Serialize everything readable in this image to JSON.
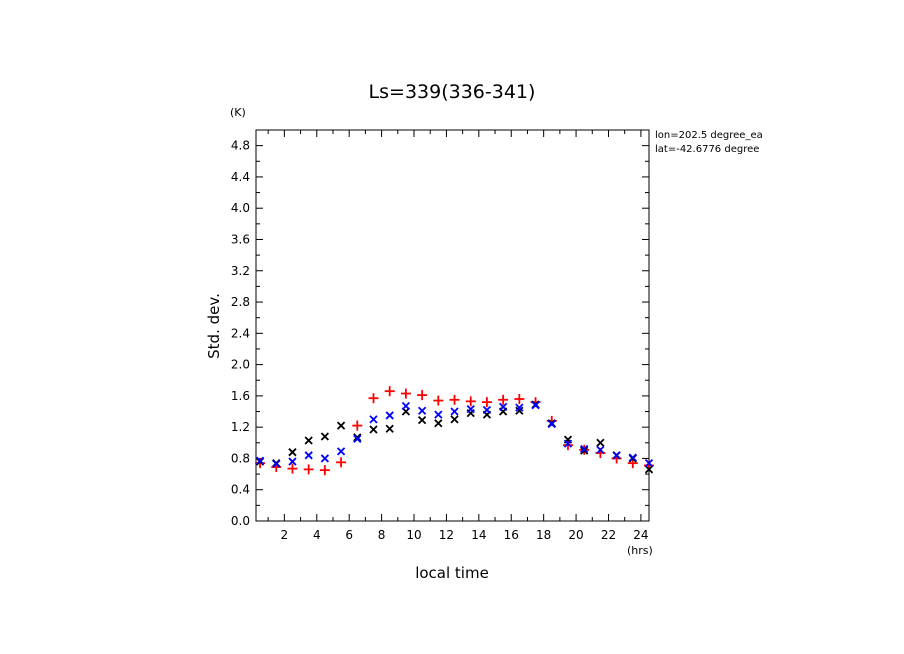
{
  "chart_data": {
    "type": "scatter",
    "title": "Ls=339(336-341)",
    "xlabel": "local time",
    "ylabel": "Std. dev.",
    "x_unit": "(hrs)",
    "y_unit": "(K)",
    "annotations": [
      "lon=202.5 degree_ea",
      "lat=-42.6776 degree"
    ],
    "xlim": [
      0.25,
      24.5
    ],
    "ylim": [
      0,
      5.0
    ],
    "xticks": [
      2,
      4,
      6,
      8,
      10,
      12,
      14,
      16,
      18,
      20,
      22,
      24
    ],
    "yticks": [
      0.0,
      0.4,
      0.8,
      1.2,
      1.6,
      2.0,
      2.4,
      2.8,
      3.2,
      3.6,
      4.0,
      4.4,
      4.8
    ],
    "x": [
      0.5,
      1.5,
      2.5,
      3.5,
      4.5,
      5.5,
      6.5,
      7.5,
      8.5,
      9.5,
      10.5,
      11.5,
      12.5,
      13.5,
      14.5,
      15.5,
      16.5,
      17.5,
      18.5,
      19.5,
      20.5,
      21.5,
      22.5,
      23.5,
      24.5
    ],
    "series": [
      {
        "color": "#ff0000",
        "marker": "plus",
        "values": [
          0.74,
          0.69,
          0.67,
          0.66,
          0.65,
          0.75,
          1.22,
          1.57,
          1.66,
          1.63,
          1.61,
          1.54,
          1.55,
          1.53,
          1.52,
          1.55,
          1.56,
          1.52,
          1.28,
          0.97,
          0.91,
          0.87,
          0.8,
          0.74,
          0.71
        ]
      },
      {
        "color": "#000000",
        "marker": "x",
        "values": [
          0.76,
          0.74,
          0.88,
          1.03,
          1.08,
          1.22,
          1.07,
          1.17,
          1.18,
          1.4,
          1.29,
          1.25,
          1.3,
          1.38,
          1.36,
          1.4,
          1.41,
          1.49,
          1.25,
          1.04,
          0.9,
          1.0,
          0.84,
          0.8,
          0.66
        ]
      },
      {
        "color": "#0000ff",
        "marker": "x",
        "values": [
          0.77,
          0.73,
          0.76,
          0.84,
          0.8,
          0.89,
          1.05,
          1.3,
          1.35,
          1.47,
          1.41,
          1.36,
          1.4,
          1.43,
          1.42,
          1.46,
          1.45,
          1.48,
          1.24,
          0.99,
          0.92,
          0.91,
          0.84,
          0.81,
          0.74
        ]
      }
    ]
  }
}
